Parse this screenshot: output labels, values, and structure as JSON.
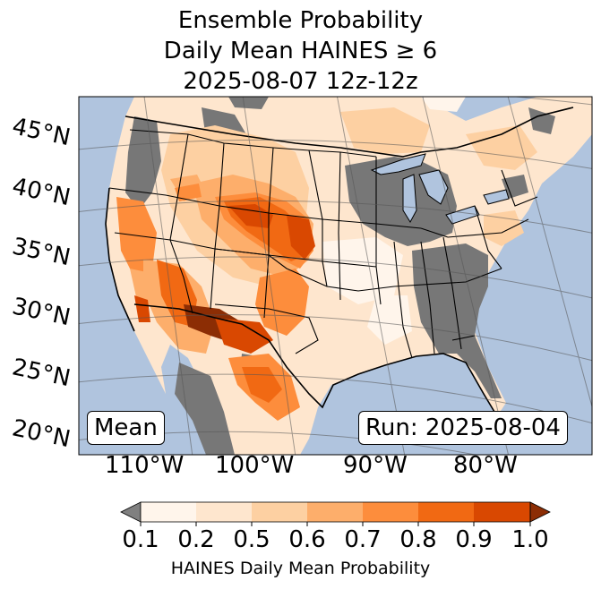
{
  "title": {
    "line1": "Ensemble Probability",
    "line2": "Daily Mean HAINES ≥ 6",
    "line3": "2025-08-07 12z-12z"
  },
  "map": {
    "ocean_color": "#b0c4de",
    "land_nodata_color": "#808080",
    "lat_labels": [
      "45°N",
      "40°N",
      "35°N",
      "30°N",
      "25°N",
      "20°N"
    ],
    "lon_labels": [
      "110°W",
      "100°W",
      "90°W",
      "80°W"
    ],
    "mean_label": "Mean",
    "run_label": "Run: 2025-08-04"
  },
  "colorbar": {
    "ticks": [
      "0.1",
      "0.2",
      "0.5",
      "0.6",
      "0.7",
      "0.8",
      "0.9",
      "1.0"
    ],
    "colors": [
      "#fff5eb",
      "#fee6ce",
      "#fdd0a2",
      "#fdae6b",
      "#fd8d3c",
      "#f16913",
      "#d94801"
    ],
    "under_color": "#808080",
    "over_color": "#8c2d04",
    "label": "HAINES Daily Mean Probability"
  }
}
